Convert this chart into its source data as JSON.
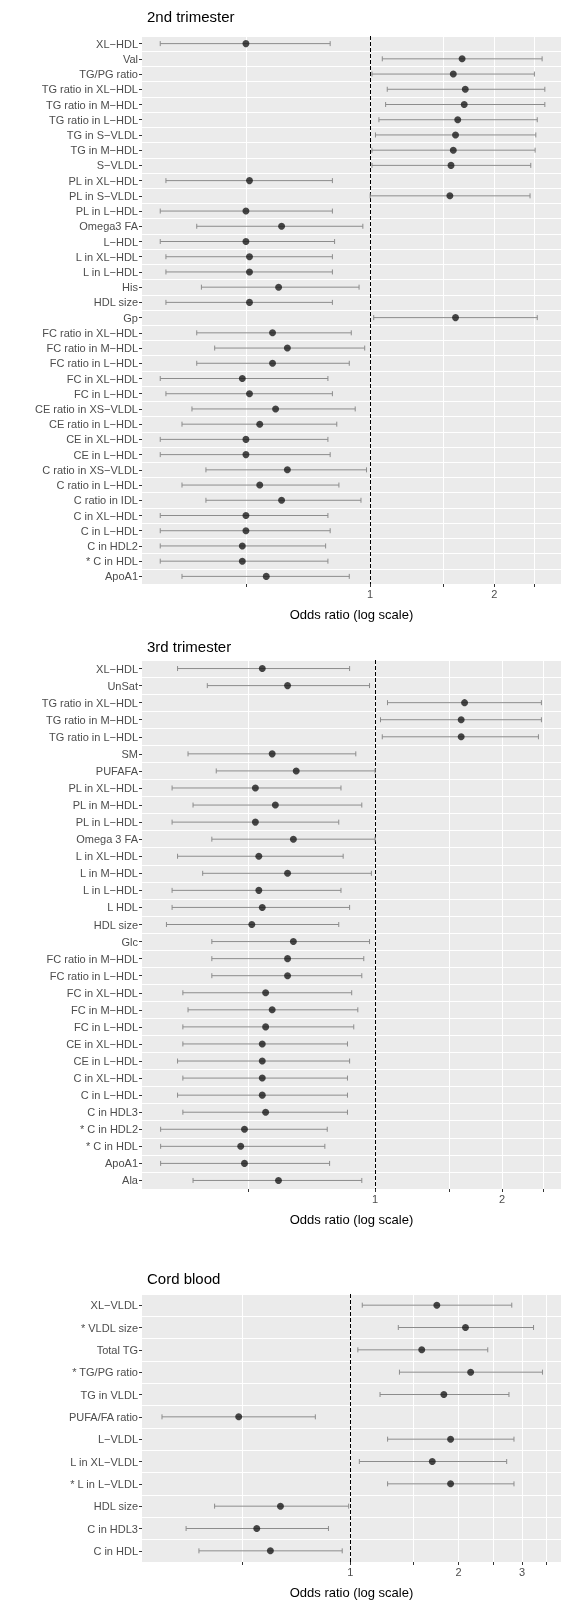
{
  "chart_data": [
    {
      "type": "scatter",
      "title": "2nd trimester",
      "xlabel": "Odds ratio (log scale)",
      "orientation": "horizontal",
      "log": "x",
      "grid": true,
      "marker": "circle",
      "color": "#1a1a1a",
      "categories": [
        "XL−HDL",
        "Val",
        "TG/PG ratio",
        "TG ratio in XL−HDL",
        "TG ratio in M−HDL",
        "TG ratio in L−HDL",
        "TG in S−VLDL",
        "TG in M−HDL",
        "S−VLDL",
        "PL in XL−HDL",
        "PL in S−VLDL",
        "PL in L−HDL",
        "Omega3 FA",
        "L−HDL",
        "L in XL−HDL",
        "L in L−HDL",
        "His",
        "HDL size",
        "Gp",
        "FC ratio in XL−HDL",
        "FC ratio in M−HDL",
        "FC ratio in L−HDL",
        "FC in XL−HDL",
        "FC in L−HDL",
        "CE ratio in XS−VLDL",
        "CE ratio in L−HDL",
        "CE in XL−HDL",
        "CE in L−HDL",
        "C ratio in XS−VLDL",
        "C ratio in L−HDL",
        "C ratio in IDL",
        "C in XL−HDL",
        "C in L−HDL",
        "C in HDL2",
        "* C in HDL",
        "ApoA1"
      ],
      "values": [
        0.5,
        1.67,
        1.59,
        1.7,
        1.69,
        1.63,
        1.61,
        1.59,
        1.57,
        0.51,
        1.56,
        0.5,
        0.61,
        0.5,
        0.51,
        0.51,
        0.6,
        0.51,
        1.61,
        0.58,
        0.63,
        0.58,
        0.49,
        0.51,
        0.59,
        0.54,
        0.5,
        0.5,
        0.63,
        0.54,
        0.61,
        0.5,
        0.5,
        0.49,
        0.49,
        0.56
      ],
      "errors": [
        [
          0.31,
          0.8
        ],
        [
          1.07,
          2.61
        ],
        [
          1.01,
          2.5
        ],
        [
          1.1,
          2.65
        ],
        [
          1.09,
          2.65
        ],
        [
          1.05,
          2.54
        ],
        [
          1.03,
          2.52
        ],
        [
          1.01,
          2.51
        ],
        [
          1.01,
          2.45
        ],
        [
          0.32,
          0.81
        ],
        [
          1.0,
          2.44
        ],
        [
          0.31,
          0.81
        ],
        [
          0.38,
          0.96
        ],
        [
          0.31,
          0.82
        ],
        [
          0.32,
          0.81
        ],
        [
          0.32,
          0.81
        ],
        [
          0.39,
          0.94
        ],
        [
          0.32,
          0.81
        ],
        [
          1.02,
          2.54
        ],
        [
          0.38,
          0.9
        ],
        [
          0.42,
          0.97
        ],
        [
          0.38,
          0.89
        ],
        [
          0.31,
          0.79
        ],
        [
          0.32,
          0.81
        ],
        [
          0.37,
          0.92
        ],
        [
          0.35,
          0.83
        ],
        [
          0.31,
          0.79
        ],
        [
          0.31,
          0.8
        ],
        [
          0.4,
          0.98
        ],
        [
          0.35,
          0.84
        ],
        [
          0.4,
          0.95
        ],
        [
          0.31,
          0.79
        ],
        [
          0.31,
          0.8
        ],
        [
          0.31,
          0.78
        ],
        [
          0.31,
          0.79
        ],
        [
          0.35,
          0.89
        ]
      ],
      "xlim": [
        0.28,
        2.9
      ],
      "xticks": [
        {
          "value": 0.5,
          "label": null
        },
        1,
        {
          "value": 1.5,
          "label": null
        },
        2,
        {
          "value": 2.5,
          "label": null
        }
      ],
      "ref_lines": [
        {
          "axis": "x",
          "value": 1,
          "line_style": "dashed",
          "color": "#000000"
        }
      ]
    },
    {
      "type": "scatter",
      "title": "3rd trimester",
      "xlabel": "Odds ratio (log scale)",
      "orientation": "horizontal",
      "log": "x",
      "grid": true,
      "marker": "circle",
      "color": "#1a1a1a",
      "categories": [
        "XL−HDL",
        "UnSat",
        "TG ratio in XL−HDL",
        "TG ratio in M−HDL",
        "TG ratio in L−HDL",
        "SM",
        "PUFAFA",
        "PL in XL−HDL",
        "PL in M−HDL",
        "PL in L−HDL",
        "Omega 3 FA",
        "L in XL−HDL",
        "L in M−HDL",
        "L in L−HDL",
        "L HDL",
        "HDL size",
        "Glc",
        "FC ratio in M−HDL",
        "FC ratio in L−HDL",
        "FC in XL−HDL",
        "FC in M−HDL",
        "FC in L−HDL",
        "CE in XL−HDL",
        "CE in L−HDL",
        "C in XL−HDL",
        "C in L−HDL",
        "C in HDL3",
        "* C in HDL2",
        "* C in HDL",
        "ApoA1",
        "Ala"
      ],
      "values": [
        0.54,
        0.62,
        1.63,
        1.6,
        1.6,
        0.57,
        0.65,
        0.52,
        0.58,
        0.52,
        0.64,
        0.53,
        0.62,
        0.53,
        0.54,
        0.51,
        0.64,
        0.62,
        0.62,
        0.55,
        0.57,
        0.55,
        0.54,
        0.54,
        0.54,
        0.54,
        0.55,
        0.49,
        0.48,
        0.49,
        0.59
      ],
      "errors": [
        [
          0.34,
          0.87
        ],
        [
          0.4,
          0.97
        ],
        [
          1.07,
          2.48
        ],
        [
          1.03,
          2.48
        ],
        [
          1.04,
          2.44
        ],
        [
          0.36,
          0.9
        ],
        [
          0.42,
          1.0
        ],
        [
          0.33,
          0.83
        ],
        [
          0.37,
          0.93
        ],
        [
          0.33,
          0.82
        ],
        [
          0.41,
          1.0
        ],
        [
          0.34,
          0.84
        ],
        [
          0.39,
          0.98
        ],
        [
          0.33,
          0.83
        ],
        [
          0.33,
          0.87
        ],
        [
          0.32,
          0.82
        ],
        [
          0.41,
          0.97
        ],
        [
          0.41,
          0.94
        ],
        [
          0.41,
          0.93
        ],
        [
          0.35,
          0.88
        ],
        [
          0.36,
          0.91
        ],
        [
          0.35,
          0.89
        ],
        [
          0.35,
          0.86
        ],
        [
          0.34,
          0.87
        ],
        [
          0.35,
          0.86
        ],
        [
          0.34,
          0.86
        ],
        [
          0.35,
          0.86
        ],
        [
          0.31,
          0.77
        ],
        [
          0.31,
          0.76
        ],
        [
          0.31,
          0.78
        ],
        [
          0.37,
          0.93
        ]
      ],
      "xlim": [
        0.28,
        2.76
      ],
      "xticks": [
        {
          "value": 0.5,
          "label": null
        },
        1,
        {
          "value": 1.5,
          "label": null
        },
        2,
        {
          "value": 2.5,
          "label": null
        }
      ],
      "ref_lines": [
        {
          "axis": "x",
          "value": 1,
          "line_style": "dashed",
          "color": "#000000"
        }
      ]
    },
    {
      "type": "scatter",
      "title": "Cord blood",
      "xlabel": "Odds ratio (log scale)",
      "orientation": "horizontal",
      "log": "x",
      "grid": true,
      "marker": "circle",
      "color": "#1a1a1a",
      "categories": [
        "XL−VLDL",
        "* VLDL size",
        "Total TG",
        "* TG/PG ratio",
        "TG in VLDL",
        "PUFA/FA ratio",
        "L−VLDL",
        "L in XL−VLDL",
        "* L in L−VLDL",
        "HDL size",
        "C in HDL3",
        "C in HDL"
      ],
      "values": [
        1.74,
        2.09,
        1.58,
        2.16,
        1.82,
        0.49,
        1.9,
        1.69,
        1.9,
        0.64,
        0.55,
        0.6
      ],
      "errors": [
        [
          1.08,
          2.81
        ],
        [
          1.36,
          3.23
        ],
        [
          1.05,
          2.41
        ],
        [
          1.37,
          3.42
        ],
        [
          1.21,
          2.76
        ],
        [
          0.3,
          0.8
        ],
        [
          1.27,
          2.85
        ],
        [
          1.06,
          2.72
        ],
        [
          1.27,
          2.85
        ],
        [
          0.42,
          0.99
        ],
        [
          0.35,
          0.87
        ],
        [
          0.38,
          0.95
        ]
      ],
      "xlim": [
        0.264,
        3.85
      ],
      "xticks": [
        {
          "value": 0.5,
          "label": null
        },
        1,
        {
          "value": 1.5,
          "label": null
        },
        2,
        {
          "value": 2.5,
          "label": null
        },
        3,
        {
          "value": 3.5,
          "label": null
        }
      ],
      "ref_lines": [
        {
          "axis": "x",
          "value": 1,
          "line_style": "dashed",
          "color": "#000000"
        }
      ]
    }
  ]
}
